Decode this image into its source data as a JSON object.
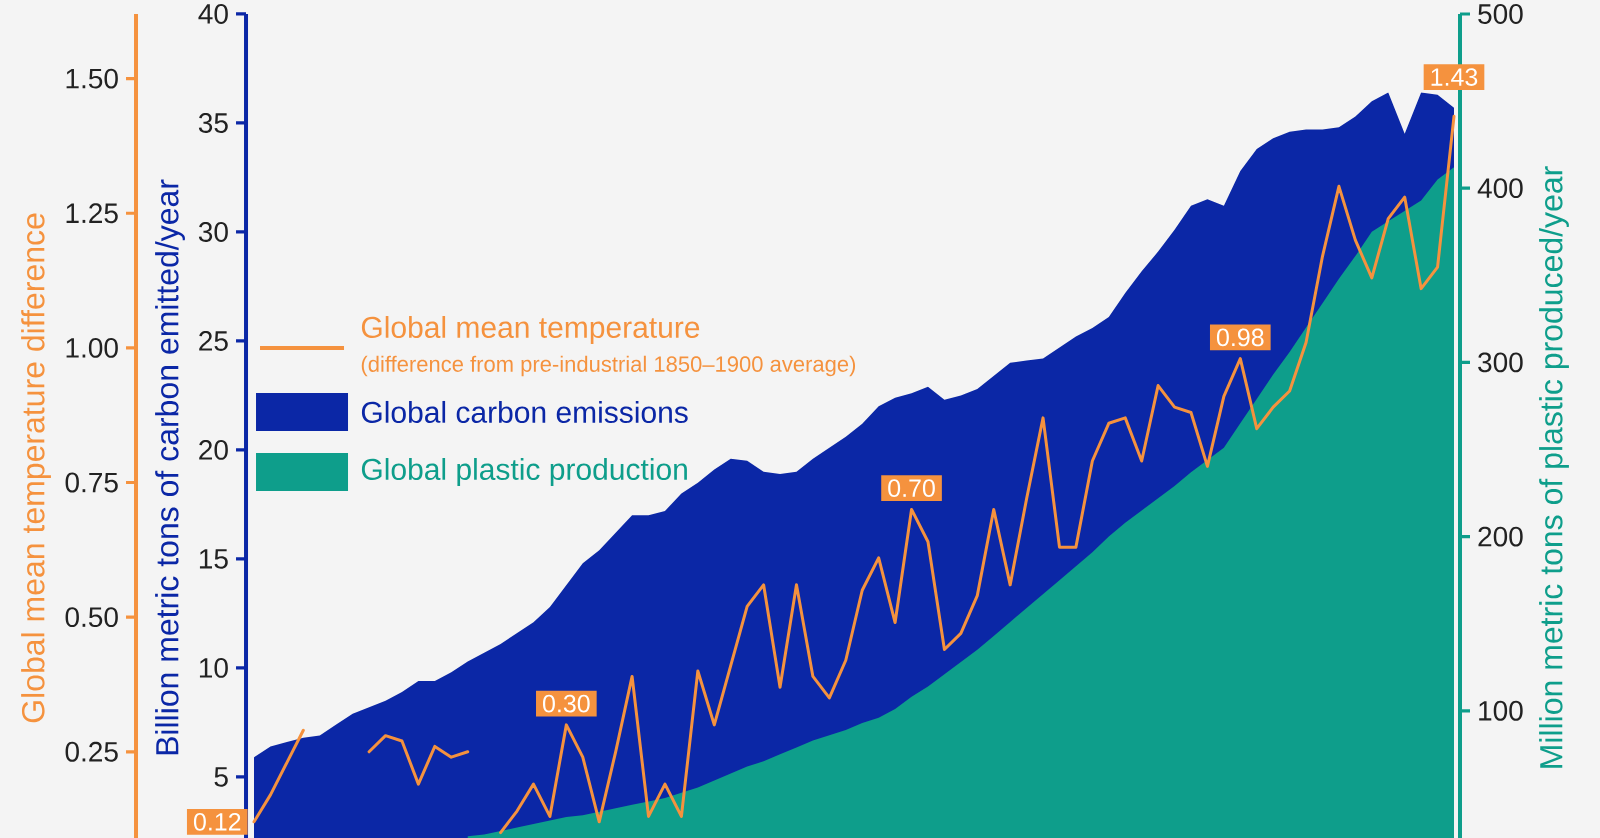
{
  "chart_data": {
    "type": "area",
    "categories": [
      null,
      null,
      null,
      null,
      null,
      null,
      null,
      null,
      null,
      null,
      null,
      null,
      null,
      null,
      null,
      null,
      null,
      null,
      null,
      null,
      null,
      null,
      null,
      null,
      null,
      null,
      null,
      null,
      null,
      null,
      null,
      null,
      null,
      null,
      null,
      null,
      null,
      null,
      null,
      null,
      null,
      null,
      null,
      null,
      null,
      null,
      null,
      null,
      null,
      null,
      null,
      null,
      null,
      null,
      null,
      null,
      null,
      null,
      null,
      null,
      null,
      null,
      null,
      null,
      null,
      null,
      null,
      null,
      null,
      null,
      null,
      null,
      null,
      null
    ],
    "ylabel": "Billion metric tons of carbon emitted/year",
    "y2label": "Million metric tons of plastic produced/year",
    "y3label": "Global mean temperature difference",
    "ylim": [
      2.2,
      40
    ],
    "yticks": [
      5,
      10,
      15,
      20,
      25,
      30,
      35,
      40
    ],
    "y2lim": [
      27,
      500
    ],
    "y2ticks": [
      100,
      200,
      300,
      400,
      500
    ],
    "y3lim": [
      0.09,
      1.62
    ],
    "y3ticks": [
      {
        "value": 0.25,
        "label": "0.25"
      },
      {
        "value": 0.5,
        "label": "0.50"
      },
      {
        "value": 0.75,
        "label": "0.75"
      },
      {
        "value": 1.0,
        "label": "1.00"
      },
      {
        "value": 1.25,
        "label": "1.25"
      },
      {
        "value": 1.5,
        "label": "1.50"
      }
    ],
    "legend": "left",
    "annotations": [
      "(difference from pre-industrial 1850–1900 average)"
    ],
    "series": [
      {
        "name": "Global mean temperature",
        "type": "line",
        "axis": "y3",
        "color": "#f5923e",
        "values": [
          0.12,
          0.17,
          0.23,
          0.29,
          null,
          null,
          null,
          0.25,
          0.28,
          0.27,
          0.19,
          0.26,
          0.24,
          0.25,
          null,
          0.1,
          0.14,
          0.19,
          0.13,
          0.3,
          0.24,
          0.12,
          0.25,
          0.39,
          0.13,
          0.19,
          0.13,
          0.4,
          0.3,
          0.41,
          0.52,
          0.56,
          0.37,
          0.56,
          0.39,
          0.35,
          0.42,
          0.55,
          0.61,
          0.49,
          0.7,
          0.64,
          0.44,
          0.47,
          0.54,
          0.7,
          0.56,
          0.72,
          0.87,
          0.63,
          0.63,
          0.79,
          0.86,
          0.87,
          0.79,
          0.93,
          0.89,
          0.88,
          0.78,
          0.91,
          0.98,
          0.85,
          0.89,
          0.92,
          1.01,
          1.17,
          1.3,
          1.2,
          1.13,
          1.24,
          1.28,
          1.11,
          1.15,
          1.43
        ],
        "value_labels": [
          "0.12",
          null,
          null,
          null,
          null,
          null,
          null,
          null,
          null,
          null,
          null,
          null,
          null,
          null,
          null,
          null,
          null,
          null,
          null,
          "0.30",
          null,
          null,
          null,
          null,
          null,
          null,
          null,
          null,
          null,
          null,
          null,
          null,
          null,
          null,
          null,
          null,
          null,
          null,
          null,
          null,
          "0.70",
          null,
          null,
          null,
          null,
          null,
          null,
          null,
          null,
          null,
          null,
          null,
          null,
          null,
          null,
          null,
          null,
          null,
          null,
          null,
          "0.98",
          null,
          null,
          null,
          null,
          null,
          null,
          null,
          null,
          null,
          null,
          null,
          null,
          "1.43"
        ]
      },
      {
        "name": "Global carbon emissions",
        "color": "#0b27a6",
        "values": [
          5.9,
          6.4,
          6.6,
          6.8,
          6.9,
          7.4,
          7.9,
          8.2,
          8.5,
          8.9,
          9.4,
          9.4,
          9.8,
          10.3,
          10.7,
          11.1,
          11.6,
          12.1,
          12.8,
          13.8,
          14.8,
          15.4,
          16.2,
          17.0,
          17.0,
          17.2,
          18.0,
          18.5,
          19.1,
          19.6,
          19.5,
          19.0,
          18.9,
          19.0,
          19.6,
          20.1,
          20.6,
          21.2,
          22.0,
          22.4,
          22.6,
          22.9,
          22.3,
          22.5,
          22.8,
          23.4,
          24.0,
          24.1,
          24.2,
          24.7,
          25.2,
          25.6,
          26.1,
          27.2,
          28.2,
          29.1,
          30.1,
          31.2,
          31.5,
          31.2,
          32.8,
          33.8,
          34.3,
          34.6,
          34.7,
          34.7,
          34.8,
          35.3,
          36.0,
          36.4,
          34.5,
          36.4,
          36.3,
          35.7
        ]
      },
      {
        "name": "Global plastic production",
        "axis": "y2",
        "color": "#0e9e8b",
        "values": [
          null,
          null,
          null,
          null,
          null,
          null,
          null,
          null,
          null,
          null,
          null,
          null,
          null,
          28,
          29,
          31,
          33,
          35,
          37,
          39,
          40,
          42,
          44,
          46,
          48,
          50,
          53,
          56,
          60,
          64,
          68,
          71,
          75,
          79,
          83,
          86,
          89,
          93,
          96,
          101,
          108,
          114,
          121,
          128,
          135,
          143,
          151,
          159,
          167,
          175,
          183,
          191,
          200,
          208,
          215,
          222,
          229,
          237,
          244,
          251,
          265,
          279,
          293,
          306,
          320,
          334,
          348,
          361,
          375,
          381,
          387,
          393,
          405,
          412
        ]
      }
    ]
  }
}
